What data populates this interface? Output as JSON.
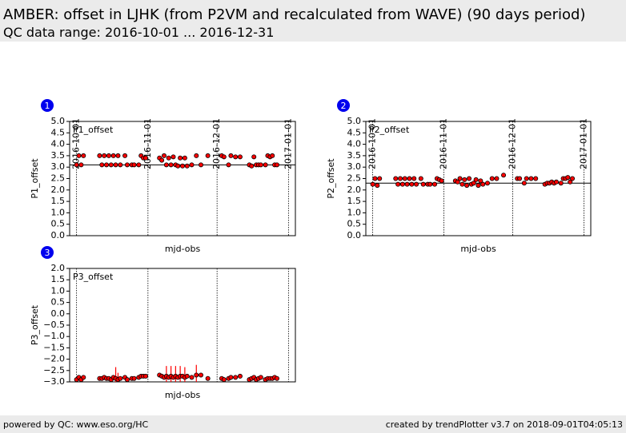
{
  "header": {
    "title": "AMBER: offset in LJHK (from P2VM and recalculated from WAVE) (90 days period)",
    "subtitle": "QC data range: 2016-10-01 ... 2016-12-31"
  },
  "footer": {
    "left": "powered by QC: www.eso.org/HC",
    "right": "created by trendPlotter v3.7 on 2018-09-01T04:05:13"
  },
  "chart_data": [
    {
      "type": "scatter",
      "panel_label": "1",
      "title": "P1_offset",
      "ylabel": "P1_offset",
      "xlabel": "mjd-obs",
      "color": "#ff0000",
      "edgecolor": "#000000",
      "reference_line": 3.1,
      "xlim": [
        "2016-09-28",
        "2017-01-04"
      ],
      "xticks": [
        "2016-10-01",
        "2016-11-01",
        "2016-12-01",
        "2017-01-01"
      ],
      "ylim": [
        0,
        5
      ],
      "yticks": [
        {
          "value": 0,
          "label": "0.0"
        },
        {
          "value": 0.5,
          "label": "0.5"
        },
        {
          "value": 1,
          "label": "1.0"
        },
        {
          "value": 1.5,
          "label": "1.5"
        },
        {
          "value": 2,
          "label": "2.0"
        },
        {
          "value": 2.5,
          "label": "2.5"
        },
        {
          "value": 3,
          "label": "3.0"
        },
        {
          "value": 3.5,
          "label": "3.5"
        },
        {
          "value": 4,
          "label": "4.0"
        },
        {
          "value": 4.5,
          "label": "4.5"
        },
        {
          "value": 5,
          "label": "5.0"
        }
      ],
      "x": [
        "2016-10-01",
        "2016-10-02",
        "2016-10-03",
        "2016-10-04",
        "2016-10-11",
        "2016-10-12",
        "2016-10-13",
        "2016-10-14",
        "2016-10-15",
        "2016-10-16",
        "2016-10-17",
        "2016-10-18",
        "2016-10-19",
        "2016-10-20",
        "2016-10-22",
        "2016-10-23",
        "2016-10-25",
        "2016-10-26",
        "2016-10-28",
        "2016-10-29",
        "2016-10-30",
        "2016-10-31",
        "2016-11-06",
        "2016-11-07",
        "2016-11-08",
        "2016-11-09",
        "2016-11-10",
        "2016-11-11",
        "2016-11-12",
        "2016-11-13",
        "2016-11-14",
        "2016-11-15",
        "2016-11-16",
        "2016-11-17",
        "2016-11-18",
        "2016-11-20",
        "2016-11-22",
        "2016-11-24",
        "2016-11-27",
        "2016-12-03",
        "2016-12-04",
        "2016-12-06",
        "2016-12-07",
        "2016-12-09",
        "2016-12-11",
        "2016-12-15",
        "2016-12-16",
        "2016-12-17",
        "2016-12-18",
        "2016-12-19",
        "2016-12-20",
        "2016-12-22",
        "2016-12-23",
        "2016-12-24",
        "2016-12-25",
        "2016-12-26",
        "2016-12-27"
      ],
      "values": [
        3.1,
        3.5,
        3.1,
        3.5,
        3.5,
        3.1,
        3.5,
        3.1,
        3.5,
        3.1,
        3.5,
        3.1,
        3.5,
        3.1,
        3.5,
        3.1,
        3.1,
        3.1,
        3.1,
        3.5,
        3.4,
        3.4,
        3.4,
        3.3,
        3.5,
        3.1,
        3.4,
        3.1,
        3.45,
        3.1,
        3.05,
        3.4,
        3.05,
        3.4,
        3.05,
        3.1,
        3.5,
        3.1,
        3.5,
        3.5,
        3.45,
        3.1,
        3.5,
        3.45,
        3.45,
        3.1,
        3.05,
        3.45,
        3.1,
        3.1,
        3.1,
        3.1,
        3.5,
        3.45,
        3.5,
        3.1,
        3.1
      ]
    },
    {
      "type": "scatter",
      "panel_label": "2",
      "title": "P2_offset",
      "ylabel": "P2_offset",
      "xlabel": "mjd-obs",
      "color": "#ff0000",
      "edgecolor": "#000000",
      "reference_line": 2.3,
      "xlim": [
        "2016-09-28",
        "2017-01-04"
      ],
      "xticks": [
        "2016-10-01",
        "2016-11-01",
        "2016-12-01",
        "2017-01-01"
      ],
      "ylim": [
        0,
        5
      ],
      "yticks": [
        {
          "value": 0,
          "label": "0.0"
        },
        {
          "value": 0.5,
          "label": "0.5"
        },
        {
          "value": 1,
          "label": "1.0"
        },
        {
          "value": 1.5,
          "label": "1.5"
        },
        {
          "value": 2,
          "label": "2.0"
        },
        {
          "value": 2.5,
          "label": "2.5"
        },
        {
          "value": 3,
          "label": "3.0"
        },
        {
          "value": 3.5,
          "label": "3.5"
        },
        {
          "value": 4,
          "label": "4.0"
        },
        {
          "value": 4.5,
          "label": "4.5"
        },
        {
          "value": 5,
          "label": "5.0"
        }
      ],
      "x": [
        "2016-10-01",
        "2016-10-02",
        "2016-10-03",
        "2016-10-04",
        "2016-10-11",
        "2016-10-12",
        "2016-10-13",
        "2016-10-14",
        "2016-10-15",
        "2016-10-16",
        "2016-10-17",
        "2016-10-18",
        "2016-10-19",
        "2016-10-20",
        "2016-10-22",
        "2016-10-23",
        "2016-10-25",
        "2016-10-26",
        "2016-10-28",
        "2016-10-29",
        "2016-10-30",
        "2016-10-31",
        "2016-11-06",
        "2016-11-07",
        "2016-11-08",
        "2016-11-09",
        "2016-11-10",
        "2016-11-11",
        "2016-11-12",
        "2016-11-13",
        "2016-11-14",
        "2016-11-15",
        "2016-11-16",
        "2016-11-17",
        "2016-11-18",
        "2016-11-20",
        "2016-11-22",
        "2016-11-24",
        "2016-11-27",
        "2016-12-03",
        "2016-12-04",
        "2016-12-06",
        "2016-12-07",
        "2016-12-09",
        "2016-12-11",
        "2016-12-15",
        "2016-12-16",
        "2016-12-17",
        "2016-12-18",
        "2016-12-19",
        "2016-12-20",
        "2016-12-22",
        "2016-12-23",
        "2016-12-24",
        "2016-12-25",
        "2016-12-26",
        "2016-12-27"
      ],
      "values": [
        2.25,
        2.5,
        2.2,
        2.5,
        2.5,
        2.25,
        2.5,
        2.25,
        2.5,
        2.25,
        2.5,
        2.25,
        2.5,
        2.25,
        2.5,
        2.25,
        2.25,
        2.25,
        2.25,
        2.5,
        2.45,
        2.4,
        2.4,
        2.35,
        2.5,
        2.25,
        2.45,
        2.2,
        2.5,
        2.25,
        2.3,
        2.45,
        2.2,
        2.4,
        2.25,
        2.3,
        2.5,
        2.5,
        2.65,
        2.5,
        2.5,
        2.3,
        2.5,
        2.5,
        2.5,
        2.25,
        2.3,
        2.3,
        2.35,
        2.3,
        2.35,
        2.3,
        2.5,
        2.5,
        2.55,
        2.35,
        2.5
      ]
    },
    {
      "type": "scatter",
      "panel_label": "3",
      "title": "P3_offset",
      "ylabel": "P3_offset",
      "xlabel": "mjd-obs",
      "color": "#ff0000",
      "edgecolor": "#000000",
      "reference_line": -3.0,
      "xlim": [
        "2016-09-28",
        "2017-01-04"
      ],
      "xticks": [
        "2016-10-01",
        "2016-11-01",
        "2016-12-01",
        "2017-01-01"
      ],
      "ylim": [
        -3,
        2
      ],
      "yticks": [
        {
          "value": -3,
          "label": "−3.0"
        },
        {
          "value": -2.5,
          "label": "−2.5"
        },
        {
          "value": -2,
          "label": "−2.0"
        },
        {
          "value": -1.5,
          "label": "−1.5"
        },
        {
          "value": -1,
          "label": "−1.0"
        },
        {
          "value": -0.5,
          "label": "−0.5"
        },
        {
          "value": 0,
          "label": "0.0"
        },
        {
          "value": 0.5,
          "label": "0.5"
        },
        {
          "value": 1,
          "label": "1.0"
        },
        {
          "value": 1.5,
          "label": "1.5"
        },
        {
          "value": 2,
          "label": "2.0"
        }
      ],
      "x": [
        "2016-10-01",
        "2016-10-02",
        "2016-10-03",
        "2016-10-04",
        "2016-10-11",
        "2016-10-12",
        "2016-10-13",
        "2016-10-14",
        "2016-10-15",
        "2016-10-16",
        "2016-10-17",
        "2016-10-18",
        "2016-10-19",
        "2016-10-20",
        "2016-10-22",
        "2016-10-23",
        "2016-10-25",
        "2016-10-26",
        "2016-10-28",
        "2016-10-29",
        "2016-10-30",
        "2016-10-31",
        "2016-11-06",
        "2016-11-07",
        "2016-11-08",
        "2016-11-09",
        "2016-11-10",
        "2016-11-11",
        "2016-11-12",
        "2016-11-13",
        "2016-11-14",
        "2016-11-15",
        "2016-11-16",
        "2016-11-17",
        "2016-11-18",
        "2016-11-20",
        "2016-11-22",
        "2016-11-24",
        "2016-11-27",
        "2016-12-03",
        "2016-12-04",
        "2016-12-06",
        "2016-12-07",
        "2016-12-09",
        "2016-12-11",
        "2016-12-15",
        "2016-12-16",
        "2016-12-17",
        "2016-12-18",
        "2016-12-19",
        "2016-12-20",
        "2016-12-22",
        "2016-12-23",
        "2016-12-24",
        "2016-12-25",
        "2016-12-26",
        "2016-12-27"
      ],
      "values": [
        -2.9,
        -2.8,
        -2.9,
        -2.8,
        -2.85,
        -2.85,
        -2.8,
        -2.85,
        -2.85,
        -2.9,
        -2.8,
        -2.85,
        -2.9,
        -2.85,
        -2.8,
        -2.9,
        -2.85,
        -2.85,
        -2.8,
        -2.75,
        -2.75,
        -2.75,
        -2.7,
        -2.75,
        -2.8,
        -2.75,
        -2.8,
        -2.75,
        -2.8,
        -2.75,
        -2.8,
        -2.75,
        -2.75,
        -2.8,
        -2.75,
        -2.8,
        -2.7,
        -2.7,
        -2.85,
        -2.85,
        -2.9,
        -2.85,
        -2.8,
        -2.8,
        -2.75,
        -2.9,
        -2.85,
        -2.8,
        -2.9,
        -2.85,
        -2.8,
        -2.9,
        -2.85,
        -2.85,
        -2.85,
        -2.8,
        -2.85
      ],
      "errors": [
        null,
        null,
        null,
        null,
        null,
        null,
        null,
        null,
        null,
        null,
        null,
        0.5,
        0.3,
        null,
        null,
        null,
        null,
        null,
        null,
        null,
        null,
        null,
        null,
        null,
        null,
        0.45,
        null,
        0.45,
        null,
        0.45,
        null,
        0.45,
        null,
        0.45,
        null,
        null,
        0.45,
        null,
        null,
        null,
        null,
        null,
        null,
        null,
        null,
        null,
        null,
        null,
        null,
        null,
        null,
        null,
        null,
        null,
        null,
        null,
        null
      ]
    }
  ]
}
